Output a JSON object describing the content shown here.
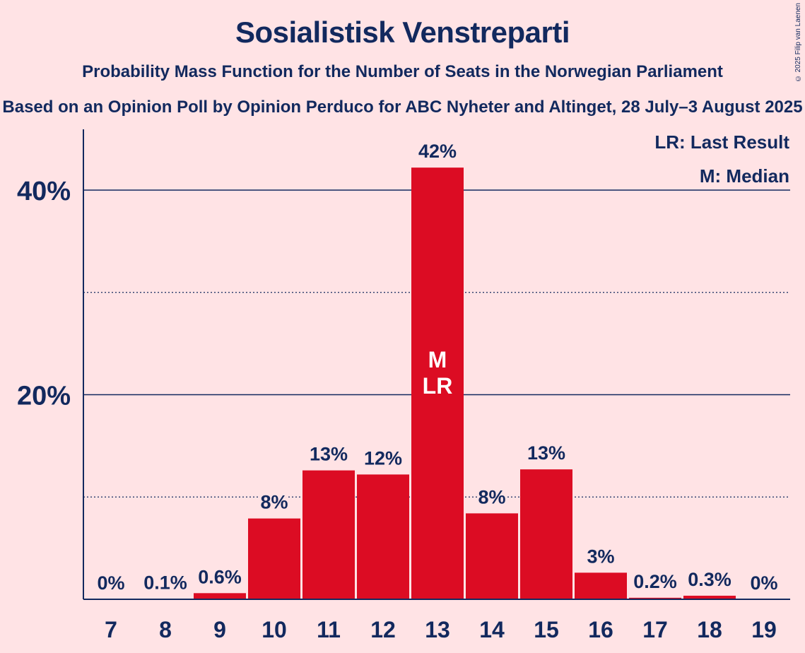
{
  "title": "Sosialistisk Venstreparti",
  "subtitle": "Probability Mass Function for the Number of Seats in the Norwegian Parliament",
  "subtitle2": "Based on an Opinion Poll by Opinion Perduco for ABC Nyheter and Altinget, 28 July–3 August 2025",
  "copyright": "© 2025 Filip van Laenen",
  "legend": {
    "last_result": "LR: Last Result",
    "median": "M: Median"
  },
  "colors": {
    "bar": "#DC0C23",
    "text": "#12295E",
    "background": "#FFE3E5"
  },
  "chart_data": {
    "type": "bar",
    "categories": [
      "7",
      "8",
      "9",
      "10",
      "11",
      "12",
      "13",
      "14",
      "15",
      "16",
      "17",
      "18",
      "19"
    ],
    "values": [
      0,
      0.1,
      0.6,
      8,
      13,
      12,
      42,
      8,
      13,
      3,
      0.2,
      0.3,
      0
    ],
    "heights": [
      0,
      0.05,
      0.6,
      7.9,
      12.6,
      12.2,
      42.2,
      8.4,
      12.7,
      2.6,
      0.15,
      0.35,
      0
    ],
    "data_labels": [
      "0%",
      "0.1%",
      "0.6%",
      "8%",
      "13%",
      "12%",
      "42%",
      "8%",
      "13%",
      "3%",
      "0.2%",
      "0.3%",
      "0%"
    ],
    "ylim": [
      0,
      46
    ],
    "yticks": [
      20,
      40
    ],
    "ytick_labels": [
      "20%",
      "40%"
    ],
    "minor_gridlines": [
      10,
      30
    ],
    "median_category": "13",
    "last_result_category": "13",
    "median_marker": "M",
    "last_result_marker": "LR",
    "legend_position": "top-right"
  }
}
